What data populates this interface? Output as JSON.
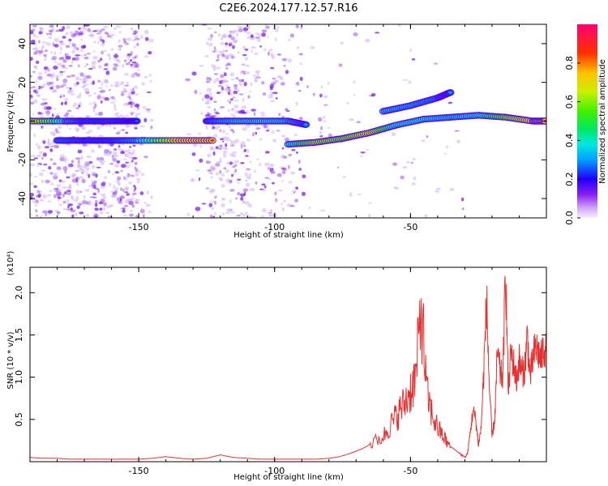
{
  "title": "C2E6.2024.177.12.57.R16",
  "colors": {
    "series": "#e83030",
    "frame": "#000000",
    "colormap": [
      "#f0e8fc",
      "#b070f0",
      "#6a00f0",
      "#0000ff",
      "#00c8ff",
      "#00e8a0",
      "#00e000",
      "#c8f000",
      "#ffc000",
      "#ff3000",
      "#ff0060"
    ]
  },
  "chart_data": [
    {
      "type": "heatmap",
      "panel": "top",
      "xlabel": "Height of straight line (km)",
      "ylabel": "Frequency (Hz)",
      "xlim": [
        -190,
        0
      ],
      "ylim": [
        -50,
        50
      ],
      "xticks": [
        -150,
        -100,
        -50
      ],
      "yticks": [
        -40,
        -20,
        0,
        20,
        40
      ],
      "colorbar": {
        "label": "Normalized spectral amplitude",
        "range": [
          0,
          1
        ],
        "ticks": [
          "0.0",
          "0.2",
          "0.4",
          "0.6",
          "0.8"
        ]
      },
      "ridges": [
        {
          "name": "band-zero-left",
          "points": [
            [
              -190,
              0
            ],
            [
              -177,
              0
            ],
            [
              -170,
              0
            ],
            [
              -160,
              0
            ],
            [
              -150,
              0
            ]
          ],
          "amplitude": [
            0.85,
            0.45,
            0.3,
            0.3,
            0.25
          ]
        },
        {
          "name": "band-minus10-left",
          "points": [
            [
              -180,
              -10
            ],
            [
              -170,
              -10
            ],
            [
              -160,
              -10
            ],
            [
              -150,
              -10
            ],
            [
              -135,
              -10
            ],
            [
              -122,
              -10
            ]
          ],
          "amplitude": [
            0.35,
            0.3,
            0.3,
            0.4,
            0.9,
            0.92
          ]
        },
        {
          "name": "band-zero-mid",
          "points": [
            [
              -125,
              0
            ],
            [
              -115,
              0
            ],
            [
              -105,
              0
            ],
            [
              -95,
              0
            ],
            [
              -88,
              -2
            ]
          ],
          "amplitude": [
            0.3,
            0.45,
            0.5,
            0.45,
            0.3
          ]
        },
        {
          "name": "rising-ridge",
          "points": [
            [
              -95,
              -12
            ],
            [
              -85,
              -11
            ],
            [
              -75,
              -9
            ],
            [
              -65,
              -6
            ],
            [
              -55,
              -2
            ],
            [
              -45,
              1
            ],
            [
              -35,
              2
            ]
          ],
          "amplitude": [
            0.5,
            0.8,
            0.75,
            0.85,
            0.5,
            0.5,
            0.45
          ]
        },
        {
          "name": "upper-branch",
          "points": [
            [
              -60,
              5
            ],
            [
              -50,
              8
            ],
            [
              -40,
              12
            ],
            [
              -35,
              15
            ]
          ],
          "amplitude": [
            0.45,
            0.4,
            0.35,
            0.3
          ]
        },
        {
          "name": "band-zero-right",
          "points": [
            [
              -35,
              2
            ],
            [
              -25,
              3
            ],
            [
              -15,
              2
            ],
            [
              -5,
              0
            ],
            [
              0,
              0
            ]
          ],
          "amplitude": [
            0.45,
            0.5,
            0.75,
            0.9,
            0.9
          ]
        }
      ]
    },
    {
      "type": "line",
      "panel": "bottom",
      "xlabel": "Height of straight line (km)",
      "ylabel": "SNR (10 * v/v)",
      "yscale_label": "(x10⁴)",
      "xlim": [
        -190,
        0
      ],
      "ylim": [
        0,
        2.3
      ],
      "xticks": [
        -150,
        -100,
        -50
      ],
      "yticks": [
        0.5,
        1.0,
        1.5,
        2.0
      ],
      "series": [
        {
          "x": [
            -190,
            -185,
            -180,
            -175,
            -170,
            -165,
            -160,
            -155,
            -150,
            -145,
            -140,
            -135,
            -130,
            -125,
            -120,
            -115,
            -110,
            -105,
            -100,
            -95,
            -90,
            -85,
            -80,
            -76,
            -72,
            -68,
            -64,
            -60,
            -58,
            -56,
            -54,
            -52,
            -50,
            -48,
            -46,
            -44,
            -42,
            -40,
            -38,
            -36,
            -34,
            -32,
            -30,
            -29,
            -28,
            -27,
            -26,
            -25,
            -24,
            -23,
            -22,
            -21,
            -20,
            -19,
            -18,
            -17,
            -16,
            -15,
            -14,
            -13,
            -12,
            -11,
            -10,
            -9,
            -8,
            -7,
            -6,
            -5,
            -4,
            -3,
            -2,
            -1,
            0
          ],
          "y": [
            0.05,
            0.04,
            0.04,
            0.03,
            0.03,
            0.03,
            0.03,
            0.03,
            0.03,
            0.04,
            0.06,
            0.04,
            0.03,
            0.04,
            0.08,
            0.05,
            0.04,
            0.03,
            0.03,
            0.03,
            0.03,
            0.03,
            0.04,
            0.06,
            0.1,
            0.15,
            0.22,
            0.3,
            0.4,
            0.5,
            0.6,
            0.7,
            0.85,
            1.0,
            1.85,
            0.8,
            0.55,
            0.4,
            0.3,
            0.2,
            0.15,
            0.1,
            0.05,
            0.1,
            0.35,
            0.6,
            0.5,
            0.2,
            0.4,
            1.1,
            1.9,
            0.9,
            0.3,
            0.5,
            1.3,
            1.05,
            1.0,
            2.3,
            0.8,
            1.3,
            1.15,
            0.95,
            1.2,
            1.05,
            1.1,
            1.5,
            1.0,
            1.2,
            1.35,
            1.3,
            1.2,
            1.35,
            1.3
          ]
        }
      ]
    }
  ]
}
